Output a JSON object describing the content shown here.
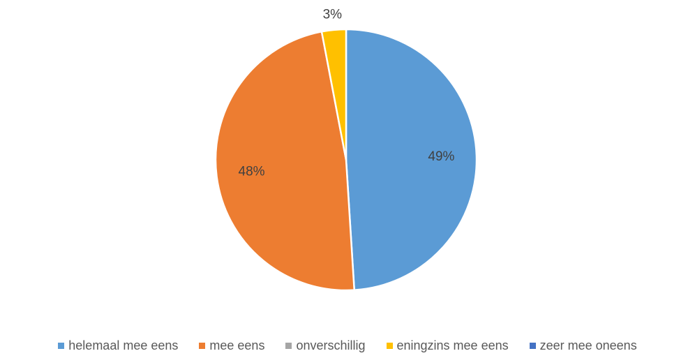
{
  "chart_data": {
    "type": "pie",
    "title": "",
    "slices": [
      {
        "label": "helemaal mee eens",
        "value": 49,
        "display": "49%",
        "color": "#5B9BD5"
      },
      {
        "label": "mee eens",
        "value": 48,
        "display": "48%",
        "color": "#ED7D31"
      },
      {
        "label": "onverschillig",
        "value": 0,
        "display": "",
        "color": "#A5A5A5"
      },
      {
        "label": "eningzins mee eens",
        "value": 3,
        "display": "3%",
        "color": "#FFC000"
      },
      {
        "label": "zeer mee oneens",
        "value": 0,
        "display": "",
        "color": "#4472C4"
      }
    ],
    "legend_position": "bottom"
  }
}
